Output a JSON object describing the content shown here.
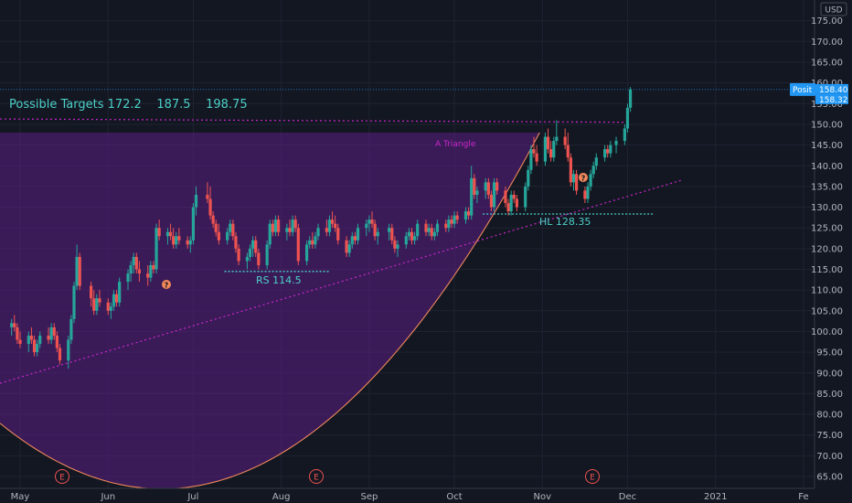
{
  "chart_data": {
    "type": "candlestick",
    "currency": "USD",
    "title": "",
    "ylim": [
      62,
      179
    ],
    "grid": true,
    "y_ticks": [
      65,
      70,
      75,
      80,
      85,
      90,
      95,
      100,
      105,
      110,
      115,
      120,
      125,
      130,
      135,
      140,
      145,
      150,
      155,
      160,
      165,
      170,
      175
    ],
    "x_labels": [
      {
        "label": "May",
        "date": "2020-05-01"
      },
      {
        "label": "Jun",
        "date": "2020-06-01"
      },
      {
        "label": "Jul",
        "date": "2020-07-01"
      },
      {
        "label": "Aug",
        "date": "2020-08-01"
      },
      {
        "label": "Sep",
        "date": "2020-09-01"
      },
      {
        "label": "Oct",
        "date": "2020-10-01"
      },
      {
        "label": "Nov",
        "date": "2020-11-01"
      },
      {
        "label": "Dec",
        "date": "2020-12-01"
      },
      {
        "label": "2021",
        "date": "2021-01-01"
      },
      {
        "label": "Fe",
        "date": "2021-02-01"
      }
    ],
    "last_price": "158.40",
    "second_price": "158.32",
    "price_tag_label": "Posit",
    "colors": {
      "up": "#26a69a",
      "down": "#ef5350",
      "pattern": "#c926c9",
      "accent": "#4dd0c8",
      "tag": "#2196f3"
    },
    "annotations": {
      "targets_text": "Possible Targets 172.2    187.5    198.75",
      "triangle_label": "A Triangle",
      "rs_label": "RS 114.5",
      "hl_label": "HL 128.35",
      "earnings_label": "E",
      "question_mark": "?"
    },
    "levels": {
      "rs": 114.5,
      "hl": 128.35,
      "neckline": 150.5,
      "box_top": 148,
      "last_price": 158.4
    },
    "candles": [
      [
        "2020-04-28",
        101,
        103,
        99,
        102
      ],
      [
        "2020-04-29",
        102,
        104,
        100,
        101
      ],
      [
        "2020-04-30",
        101,
        102,
        97,
        98
      ],
      [
        "2020-05-01",
        98,
        100,
        96,
        97
      ],
      [
        "2020-05-04",
        97,
        100,
        95,
        99
      ],
      [
        "2020-05-05",
        99,
        101,
        97,
        98
      ],
      [
        "2020-05-06",
        98,
        99,
        94,
        95
      ],
      [
        "2020-05-07",
        95,
        98,
        94,
        97
      ],
      [
        "2020-05-08",
        97,
        100,
        96,
        99
      ],
      [
        "2020-05-11",
        99,
        101,
        97,
        98
      ],
      [
        "2020-05-12",
        98,
        102,
        97,
        101
      ],
      [
        "2020-05-13",
        101,
        102,
        98,
        99
      ],
      [
        "2020-05-14",
        99,
        100,
        95,
        96
      ],
      [
        "2020-05-15",
        96,
        97,
        92,
        93
      ],
      [
        "2020-05-18",
        93,
        99,
        91,
        98
      ],
      [
        "2020-05-19",
        98,
        104,
        97,
        103
      ],
      [
        "2020-05-20",
        103,
        112,
        102,
        111
      ],
      [
        "2020-05-21",
        111,
        121,
        110,
        118
      ],
      [
        "2020-05-22",
        118,
        119,
        110,
        111
      ],
      [
        "2020-05-26",
        111,
        112,
        106,
        108
      ],
      [
        "2020-05-27",
        108,
        110,
        104,
        105
      ],
      [
        "2020-05-28",
        105,
        109,
        104,
        108
      ],
      [
        "2020-05-29",
        108,
        110,
        106,
        107
      ],
      [
        "2020-06-01",
        107,
        108,
        104,
        105
      ],
      [
        "2020-06-02",
        105,
        107,
        103,
        106
      ],
      [
        "2020-06-03",
        106,
        110,
        105,
        109
      ],
      [
        "2020-06-04",
        109,
        110,
        106,
        107
      ],
      [
        "2020-06-05",
        107,
        113,
        106,
        112
      ],
      [
        "2020-06-08",
        112,
        115,
        110,
        114
      ],
      [
        "2020-06-09",
        114,
        117,
        112,
        116
      ],
      [
        "2020-06-10",
        116,
        119,
        114,
        118
      ],
      [
        "2020-06-11",
        118,
        119,
        114,
        115
      ],
      [
        "2020-06-12",
        115,
        117,
        112,
        114
      ],
      [
        "2020-06-15",
        114,
        116,
        111,
        113
      ],
      [
        "2020-06-16",
        113,
        117,
        112,
        116
      ],
      [
        "2020-06-17",
        116,
        117,
        114,
        115
      ],
      [
        "2020-06-18",
        115,
        126,
        114,
        125
      ],
      [
        "2020-06-19",
        125,
        127,
        122,
        123
      ],
      [
        "2020-06-22",
        123,
        125,
        121,
        124
      ],
      [
        "2020-06-23",
        124,
        126,
        122,
        123
      ],
      [
        "2020-06-24",
        123,
        125,
        120,
        121
      ],
      [
        "2020-06-25",
        121,
        124,
        120,
        123
      ],
      [
        "2020-06-26",
        123,
        125,
        121,
        122
      ],
      [
        "2020-06-29",
        122,
        123,
        120,
        121
      ],
      [
        "2020-06-30",
        121,
        123,
        119,
        122
      ],
      [
        "2020-07-01",
        122,
        131,
        121,
        130
      ],
      [
        "2020-07-02",
        130,
        135,
        128,
        133
      ],
      [
        "2020-07-06",
        133,
        136,
        131,
        132
      ],
      [
        "2020-07-07",
        132,
        135,
        127,
        128
      ],
      [
        "2020-07-08",
        128,
        129,
        125,
        126
      ],
      [
        "2020-07-09",
        126,
        127,
        123,
        124
      ],
      [
        "2020-07-10",
        124,
        126,
        121,
        122
      ],
      [
        "2020-07-13",
        122,
        125,
        121,
        124
      ],
      [
        "2020-07-14",
        124,
        127,
        123,
        126
      ],
      [
        "2020-07-15",
        126,
        127,
        122,
        123
      ],
      [
        "2020-07-16",
        123,
        124,
        119,
        120
      ],
      [
        "2020-07-17",
        120,
        121,
        116,
        117
      ],
      [
        "2020-07-20",
        117,
        119,
        115,
        118
      ],
      [
        "2020-07-21",
        118,
        121,
        117,
        120
      ],
      [
        "2020-07-22",
        120,
        123,
        118,
        122
      ],
      [
        "2020-07-23",
        122,
        123,
        118,
        119
      ],
      [
        "2020-07-24",
        119,
        120,
        115,
        116
      ],
      [
        "2020-07-27",
        116,
        122,
        115,
        121
      ],
      [
        "2020-07-28",
        121,
        127,
        120,
        126
      ],
      [
        "2020-07-29",
        126,
        127,
        123,
        124
      ],
      [
        "2020-07-30",
        124,
        128,
        123,
        127
      ],
      [
        "2020-07-31",
        127,
        128,
        123,
        124
      ],
      [
        "2020-08-03",
        124,
        126,
        122,
        125
      ],
      [
        "2020-08-04",
        125,
        127,
        123,
        124
      ],
      [
        "2020-08-05",
        124,
        128,
        123,
        127
      ],
      [
        "2020-08-06",
        127,
        128,
        124,
        125
      ],
      [
        "2020-08-07",
        125,
        126,
        116,
        117
      ],
      [
        "2020-08-10",
        117,
        122,
        116,
        121
      ],
      [
        "2020-08-11",
        121,
        123,
        120,
        122
      ],
      [
        "2020-08-12",
        122,
        124,
        120,
        121
      ],
      [
        "2020-08-13",
        121,
        124,
        120,
        123
      ],
      [
        "2020-08-14",
        123,
        126,
        122,
        125
      ],
      [
        "2020-08-17",
        125,
        127,
        123,
        124
      ],
      [
        "2020-08-18",
        124,
        128,
        123,
        127
      ],
      [
        "2020-08-19",
        127,
        129,
        125,
        126
      ],
      [
        "2020-08-20",
        126,
        128,
        124,
        125
      ],
      [
        "2020-08-21",
        125,
        126,
        121,
        122
      ],
      [
        "2020-08-24",
        122,
        123,
        118,
        119
      ],
      [
        "2020-08-25",
        119,
        122,
        118,
        121
      ],
      [
        "2020-08-26",
        121,
        124,
        120,
        123
      ],
      [
        "2020-08-27",
        123,
        124,
        121,
        122
      ],
      [
        "2020-08-28",
        122,
        126,
        121,
        125
      ],
      [
        "2020-08-31",
        125,
        127,
        123,
        126
      ],
      [
        "2020-09-01",
        126,
        128,
        124,
        127
      ],
      [
        "2020-09-02",
        127,
        129,
        125,
        126
      ],
      [
        "2020-09-03",
        126,
        127,
        122,
        123
      ],
      [
        "2020-09-04",
        123,
        125,
        121,
        124
      ],
      [
        "2020-09-08",
        124,
        126,
        122,
        125
      ],
      [
        "2020-09-09",
        125,
        126,
        121,
        122
      ],
      [
        "2020-09-10",
        122,
        123,
        119,
        120
      ],
      [
        "2020-09-11",
        120,
        122,
        118,
        121
      ],
      [
        "2020-09-14",
        121,
        124,
        120,
        123
      ],
      [
        "2020-09-15",
        123,
        125,
        122,
        124
      ],
      [
        "2020-09-16",
        124,
        125,
        121,
        122
      ],
      [
        "2020-09-17",
        122,
        124,
        121,
        123
      ],
      [
        "2020-09-18",
        123,
        127,
        122,
        126
      ],
      [
        "2020-09-21",
        126,
        127,
        123,
        124
      ],
      [
        "2020-09-22",
        124,
        126,
        123,
        125
      ],
      [
        "2020-09-23",
        125,
        126,
        122,
        123
      ],
      [
        "2020-09-24",
        123,
        125,
        122,
        124
      ],
      [
        "2020-09-25",
        124,
        127,
        123,
        126
      ],
      [
        "2020-09-28",
        126,
        127,
        124,
        125
      ],
      [
        "2020-09-29",
        125,
        128,
        124,
        127
      ],
      [
        "2020-09-30",
        127,
        128,
        125,
        126
      ],
      [
        "2020-10-01",
        126,
        129,
        125,
        128
      ],
      [
        "2020-10-02",
        128,
        129,
        126,
        127
      ],
      [
        "2020-10-05",
        127,
        130,
        126,
        129
      ],
      [
        "2020-10-06",
        129,
        130,
        127,
        128
      ],
      [
        "2020-10-07",
        128,
        140,
        127,
        137
      ],
      [
        "2020-10-08",
        137,
        138,
        132,
        133
      ],
      [
        "2020-10-09",
        133,
        135,
        131,
        134
      ],
      [
        "2020-10-12",
        134,
        137,
        132,
        136
      ],
      [
        "2020-10-13",
        136,
        137,
        132,
        133
      ],
      [
        "2020-10-14",
        133,
        134,
        129,
        130
      ],
      [
        "2020-10-15",
        130,
        137,
        129,
        136
      ],
      [
        "2020-10-16",
        136,
        137,
        133,
        134
      ],
      [
        "2020-10-19",
        134,
        135,
        130,
        131
      ],
      [
        "2020-10-20",
        131,
        132,
        128,
        129
      ],
      [
        "2020-10-21",
        129,
        134,
        128,
        133
      ],
      [
        "2020-10-22",
        133,
        134,
        131,
        132
      ],
      [
        "2020-10-23",
        132,
        133,
        129,
        130
      ],
      [
        "2020-10-26",
        130,
        136,
        129,
        135
      ],
      [
        "2020-10-27",
        135,
        140,
        134,
        139
      ],
      [
        "2020-10-28",
        139,
        145,
        138,
        144
      ],
      [
        "2020-10-29",
        144,
        147,
        142,
        143
      ],
      [
        "2020-10-30",
        143,
        145,
        140,
        141
      ],
      [
        "2020-11-02",
        141,
        148,
        140,
        147
      ],
      [
        "2020-11-03",
        147,
        149,
        143,
        144
      ],
      [
        "2020-11-04",
        144,
        146,
        141,
        142
      ],
      [
        "2020-11-05",
        142,
        147,
        141,
        146
      ],
      [
        "2020-11-06",
        146,
        151,
        145,
        147
      ],
      [
        "2020-11-09",
        147,
        149,
        144,
        145
      ],
      [
        "2020-11-10",
        145,
        148,
        141,
        142
      ],
      [
        "2020-11-11",
        142,
        143,
        135,
        136
      ],
      [
        "2020-11-12",
        136,
        139,
        134,
        138
      ],
      [
        "2020-11-13",
        138,
        139,
        133,
        134
      ],
      [
        "2020-11-16",
        134,
        135,
        131,
        132
      ],
      [
        "2020-11-17",
        132,
        136,
        131,
        135
      ],
      [
        "2020-11-18",
        135,
        139,
        134,
        138
      ],
      [
        "2020-11-19",
        138,
        141,
        137,
        140
      ],
      [
        "2020-11-20",
        140,
        143,
        139,
        142
      ],
      [
        "2020-11-23",
        142,
        145,
        141,
        144
      ],
      [
        "2020-11-24",
        144,
        145,
        142,
        143
      ],
      [
        "2020-11-25",
        143,
        146,
        142,
        145
      ],
      [
        "2020-11-27",
        145,
        147,
        143,
        146
      ],
      [
        "2020-11-30",
        146,
        150,
        145,
        149
      ],
      [
        "2020-12-01",
        149,
        155,
        148,
        154
      ],
      [
        "2020-12-02",
        154,
        159,
        153,
        158.4
      ]
    ]
  }
}
